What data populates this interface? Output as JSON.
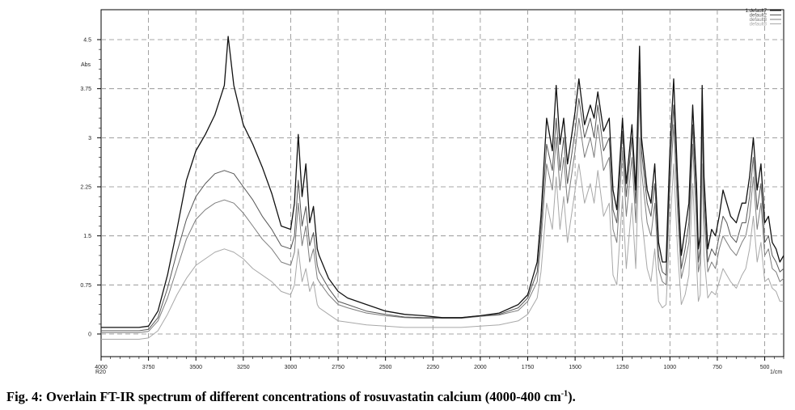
{
  "caption": {
    "prefix": "Fig. 4: Overlain FT-IR spectrum of different concentrations of rosuvastatin calcium (4000-400 cm",
    "superscript": "-1",
    "suffix": ")."
  },
  "chart_data": {
    "type": "line",
    "title": "",
    "ylabel": "Abs",
    "xlabel_left": "R20",
    "xlabel_right": "1/cm",
    "xlim": [
      4000,
      400
    ],
    "ylim": [
      -0.18,
      4.9
    ],
    "x_ticks": [
      4000,
      3750,
      3500,
      3250,
      3000,
      2750,
      2500,
      2250,
      2000,
      1750,
      1500,
      1250,
      1000,
      750,
      500
    ],
    "x_tick_labels": [
      "4000",
      "3750",
      "3500",
      "3250",
      "3000",
      "2750",
      "2500",
      "2250",
      "2000",
      "1750",
      "1500",
      "1250",
      "1000",
      "750",
      "500"
    ],
    "y_ticks": [
      0,
      0.75,
      1.5,
      2.25,
      3,
      3.75,
      4.5
    ],
    "y_tick_labels": [
      "0",
      "0.75",
      "1.5",
      "2.25",
      "3",
      "3.75",
      "4.5"
    ],
    "grid": true,
    "legend_position": "top-right",
    "colors": [
      "#111111",
      "#555555",
      "#7d7d7d",
      "#a8a8a8"
    ],
    "series": [
      {
        "name": "1.default7",
        "x": [
          4000,
          3800,
          3750,
          3700,
          3650,
          3600,
          3550,
          3500,
          3450,
          3400,
          3350,
          3330,
          3300,
          3250,
          3200,
          3150,
          3100,
          3050,
          3000,
          2980,
          2960,
          2940,
          2920,
          2900,
          2880,
          2860,
          2850,
          2800,
          2750,
          2700,
          2600,
          2500,
          2400,
          2300,
          2200,
          2100,
          2000,
          1900,
          1800,
          1750,
          1700,
          1680,
          1650,
          1620,
          1600,
          1580,
          1560,
          1540,
          1500,
          1480,
          1450,
          1420,
          1400,
          1380,
          1350,
          1320,
          1300,
          1280,
          1250,
          1230,
          1200,
          1180,
          1160,
          1150,
          1120,
          1100,
          1080,
          1060,
          1040,
          1020,
          1000,
          980,
          960,
          940,
          920,
          900,
          880,
          860,
          850,
          840,
          830,
          820,
          800,
          780,
          760,
          740,
          720,
          700,
          680,
          650,
          620,
          600,
          580,
          560,
          540,
          520,
          500,
          480,
          460,
          440,
          420,
          400
        ],
        "y": [
          0.1,
          0.1,
          0.12,
          0.35,
          0.9,
          1.6,
          2.35,
          2.8,
          3.05,
          3.35,
          3.8,
          4.55,
          3.8,
          3.2,
          2.9,
          2.55,
          2.15,
          1.65,
          1.6,
          2.0,
          3.05,
          2.1,
          2.6,
          1.7,
          1.95,
          1.3,
          1.2,
          0.85,
          0.65,
          0.55,
          0.45,
          0.35,
          0.3,
          0.28,
          0.25,
          0.25,
          0.28,
          0.32,
          0.45,
          0.6,
          1.1,
          1.8,
          3.3,
          2.8,
          3.8,
          2.9,
          3.3,
          2.6,
          3.4,
          3.9,
          3.2,
          3.5,
          3.3,
          3.7,
          3.1,
          3.3,
          2.2,
          1.9,
          3.3,
          2.3,
          3.2,
          2.2,
          4.4,
          3.0,
          2.2,
          2.0,
          2.6,
          1.4,
          1.1,
          1.1,
          2.8,
          3.9,
          2.4,
          1.2,
          1.6,
          2.0,
          3.5,
          2.3,
          1.3,
          1.5,
          3.8,
          2.4,
          1.3,
          1.6,
          1.5,
          1.8,
          2.2,
          2.0,
          1.8,
          1.7,
          2.0,
          2.0,
          2.4,
          3.0,
          2.2,
          2.6,
          1.7,
          1.8,
          1.4,
          1.3,
          1.1,
          1.2
        ]
      },
      {
        "name": "default2",
        "x": [
          4000,
          3800,
          3750,
          3700,
          3650,
          3600,
          3550,
          3500,
          3450,
          3400,
          3350,
          3300,
          3250,
          3200,
          3150,
          3100,
          3050,
          3000,
          2980,
          2960,
          2940,
          2920,
          2900,
          2880,
          2860,
          2850,
          2800,
          2750,
          2700,
          2600,
          2500,
          2400,
          2300,
          2200,
          2100,
          2000,
          1900,
          1800,
          1750,
          1700,
          1680,
          1650,
          1620,
          1600,
          1580,
          1560,
          1540,
          1500,
          1480,
          1450,
          1420,
          1400,
          1380,
          1350,
          1320,
          1300,
          1280,
          1250,
          1230,
          1200,
          1180,
          1160,
          1150,
          1120,
          1100,
          1080,
          1060,
          1040,
          1020,
          1000,
          980,
          960,
          940,
          920,
          900,
          880,
          860,
          850,
          840,
          830,
          820,
          800,
          780,
          760,
          740,
          720,
          700,
          680,
          650,
          620,
          600,
          580,
          560,
          540,
          520,
          500,
          480,
          460,
          440,
          420,
          400
        ],
        "y": [
          0.05,
          0.05,
          0.07,
          0.25,
          0.7,
          1.25,
          1.75,
          2.1,
          2.3,
          2.45,
          2.5,
          2.45,
          2.25,
          2.05,
          1.8,
          1.6,
          1.35,
          1.3,
          1.5,
          2.35,
          1.65,
          1.95,
          1.35,
          1.55,
          1.05,
          0.95,
          0.7,
          0.5,
          0.45,
          0.35,
          0.3,
          0.26,
          0.25,
          0.25,
          0.25,
          0.28,
          0.3,
          0.4,
          0.55,
          0.95,
          1.6,
          2.9,
          2.5,
          3.3,
          2.5,
          3.0,
          2.3,
          3.1,
          3.6,
          3.0,
          3.3,
          3.0,
          3.5,
          2.8,
          3.0,
          1.9,
          1.7,
          3.1,
          2.1,
          3.0,
          2.0,
          4.0,
          2.8,
          2.0,
          1.8,
          2.3,
          1.2,
          0.95,
          0.9,
          2.5,
          3.5,
          2.2,
          1.0,
          1.3,
          1.7,
          3.2,
          2.0,
          1.1,
          1.3,
          3.5,
          2.1,
          1.1,
          1.3,
          1.2,
          1.5,
          1.8,
          1.7,
          1.5,
          1.4,
          1.7,
          1.7,
          2.1,
          2.7,
          1.9,
          2.3,
          1.4,
          1.5,
          1.2,
          1.1,
          0.95,
          1.0
        ]
      },
      {
        "name": "default3",
        "x": [
          4000,
          3800,
          3750,
          3700,
          3650,
          3600,
          3550,
          3500,
          3450,
          3400,
          3350,
          3300,
          3250,
          3200,
          3150,
          3100,
          3050,
          3000,
          2980,
          2960,
          2940,
          2920,
          2900,
          2880,
          2860,
          2850,
          2800,
          2750,
          2700,
          2600,
          2500,
          2400,
          2300,
          2200,
          2100,
          2000,
          1900,
          1800,
          1750,
          1700,
          1680,
          1650,
          1620,
          1600,
          1580,
          1560,
          1540,
          1500,
          1480,
          1450,
          1420,
          1400,
          1380,
          1350,
          1320,
          1300,
          1280,
          1250,
          1230,
          1200,
          1180,
          1160,
          1150,
          1120,
          1100,
          1080,
          1060,
          1040,
          1020,
          1000,
          980,
          960,
          940,
          920,
          900,
          880,
          860,
          850,
          840,
          830,
          820,
          800,
          780,
          760,
          740,
          720,
          700,
          680,
          650,
          620,
          600,
          580,
          560,
          540,
          520,
          500,
          480,
          460,
          440,
          420,
          400
        ],
        "y": [
          0.02,
          0.02,
          0.04,
          0.2,
          0.55,
          1.0,
          1.45,
          1.75,
          1.9,
          2.0,
          2.05,
          2.0,
          1.85,
          1.65,
          1.45,
          1.3,
          1.1,
          1.05,
          1.25,
          2.0,
          1.35,
          1.65,
          1.1,
          1.3,
          0.85,
          0.8,
          0.6,
          0.45,
          0.4,
          0.32,
          0.28,
          0.25,
          0.24,
          0.24,
          0.24,
          0.27,
          0.29,
          0.36,
          0.5,
          0.8,
          1.4,
          2.6,
          2.2,
          3.0,
          2.2,
          2.7,
          2.0,
          2.8,
          3.3,
          2.7,
          3.0,
          2.7,
          3.2,
          2.5,
          2.7,
          1.6,
          1.4,
          2.8,
          1.8,
          2.7,
          1.7,
          3.7,
          2.5,
          1.7,
          1.5,
          2.0,
          1.0,
          0.8,
          0.75,
          2.2,
          3.2,
          1.9,
          0.85,
          1.1,
          1.4,
          2.9,
          1.7,
          0.95,
          1.1,
          3.2,
          1.8,
          0.95,
          1.1,
          1.0,
          1.3,
          1.5,
          1.4,
          1.3,
          1.2,
          1.4,
          1.5,
          1.8,
          2.4,
          1.6,
          2.0,
          1.2,
          1.3,
          1.0,
          0.95,
          0.8,
          0.85
        ]
      },
      {
        "name": "default8",
        "x": [
          4000,
          3800,
          3750,
          3700,
          3650,
          3600,
          3550,
          3500,
          3450,
          3400,
          3350,
          3300,
          3250,
          3200,
          3150,
          3100,
          3050,
          3000,
          2980,
          2960,
          2940,
          2920,
          2900,
          2880,
          2860,
          2850,
          2800,
          2750,
          2700,
          2600,
          2500,
          2400,
          2300,
          2200,
          2100,
          2000,
          1900,
          1800,
          1750,
          1700,
          1680,
          1650,
          1620,
          1600,
          1580,
          1560,
          1540,
          1500,
          1480,
          1450,
          1420,
          1400,
          1380,
          1350,
          1320,
          1300,
          1280,
          1250,
          1230,
          1200,
          1180,
          1160,
          1150,
          1120,
          1100,
          1080,
          1060,
          1040,
          1020,
          1000,
          980,
          960,
          940,
          920,
          900,
          880,
          860,
          850,
          840,
          830,
          820,
          800,
          780,
          760,
          740,
          720,
          700,
          680,
          650,
          620,
          600,
          580,
          560,
          540,
          520,
          500,
          480,
          460,
          440,
          420,
          400
        ],
        "y": [
          -0.08,
          -0.08,
          -0.06,
          0.05,
          0.3,
          0.6,
          0.85,
          1.05,
          1.15,
          1.25,
          1.3,
          1.25,
          1.15,
          1.0,
          0.9,
          0.8,
          0.65,
          0.6,
          0.75,
          1.3,
          0.8,
          1.0,
          0.65,
          0.8,
          0.45,
          0.4,
          0.3,
          0.2,
          0.18,
          0.14,
          0.12,
          0.1,
          0.1,
          0.1,
          0.1,
          0.12,
          0.14,
          0.2,
          0.3,
          0.55,
          0.95,
          2.0,
          1.6,
          2.4,
          1.6,
          2.1,
          1.4,
          2.2,
          2.6,
          2.0,
          2.3,
          2.0,
          2.5,
          1.8,
          2.0,
          0.9,
          0.75,
          2.1,
          1.0,
          2.0,
          1.0,
          3.0,
          1.8,
          1.0,
          0.8,
          1.3,
          0.5,
          0.4,
          0.45,
          1.6,
          2.6,
          1.3,
          0.45,
          0.6,
          0.9,
          2.3,
          1.1,
          0.5,
          0.6,
          2.6,
          1.2,
          0.55,
          0.65,
          0.6,
          0.8,
          1.0,
          0.9,
          0.8,
          0.7,
          0.9,
          1.0,
          1.3,
          1.8,
          1.1,
          1.4,
          0.8,
          0.85,
          0.7,
          0.65,
          0.5,
          0.5
        ]
      }
    ]
  }
}
